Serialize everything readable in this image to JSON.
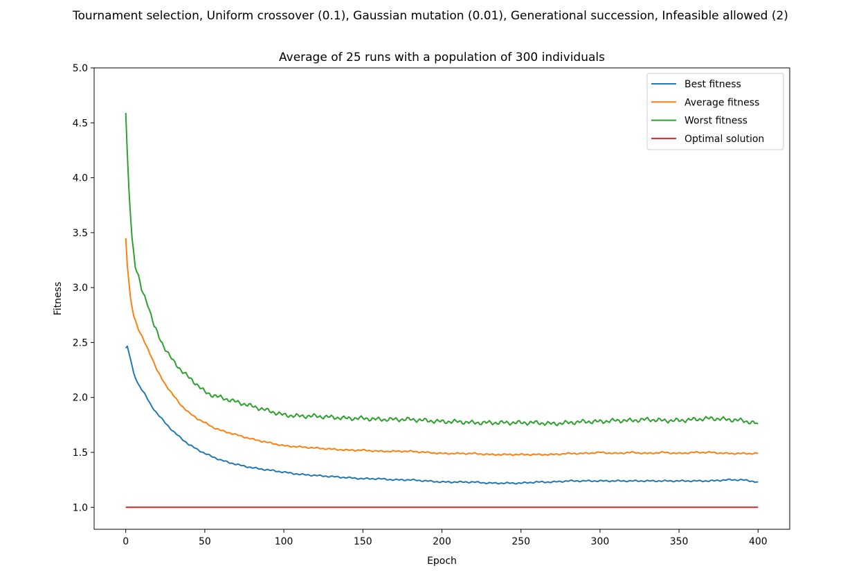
{
  "figure": {
    "suptitle": "Tournament selection, Uniform crossover (0.1), Gaussian mutation (0.01), Generational succession, Infeasible allowed (2)"
  },
  "chart_data": {
    "type": "line",
    "title": "Average of 25 runs with a population of 300 individuals",
    "xlabel": "Epoch",
    "ylabel": "Fitness",
    "xlim": [
      -20,
      420
    ],
    "ylim": [
      0.8,
      5.0
    ],
    "xticks": [
      0,
      50,
      100,
      150,
      200,
      250,
      300,
      350,
      400
    ],
    "yticks": [
      1.0,
      1.5,
      2.0,
      2.5,
      3.0,
      3.5,
      4.0,
      4.5,
      5.0
    ],
    "xtick_labels": [
      "0",
      "50",
      "100",
      "150",
      "200",
      "250",
      "300",
      "350",
      "400"
    ],
    "ytick_labels": [
      "1.0",
      "1.5",
      "2.0",
      "2.5",
      "3.0",
      "3.5",
      "4.0",
      "4.5",
      "5.0"
    ],
    "grid": false,
    "legend_position": "top-right",
    "series": [
      {
        "name": "Best fitness",
        "color": "#1f77b4",
        "x": [
          0,
          1,
          3,
          5,
          8,
          12,
          16,
          20,
          25,
          30,
          35,
          40,
          45,
          50,
          55,
          60,
          65,
          70,
          80,
          90,
          100,
          110,
          120,
          130,
          140,
          150,
          160,
          170,
          180,
          190,
          200,
          210,
          220,
          230,
          240,
          250,
          260,
          270,
          280,
          290,
          300,
          310,
          320,
          330,
          340,
          350,
          360,
          370,
          380,
          390,
          400
        ],
        "y": [
          2.45,
          2.46,
          2.35,
          2.22,
          2.12,
          2.03,
          1.93,
          1.85,
          1.77,
          1.69,
          1.63,
          1.57,
          1.53,
          1.49,
          1.46,
          1.43,
          1.41,
          1.39,
          1.36,
          1.34,
          1.32,
          1.3,
          1.29,
          1.28,
          1.27,
          1.26,
          1.26,
          1.25,
          1.25,
          1.24,
          1.23,
          1.23,
          1.23,
          1.22,
          1.22,
          1.22,
          1.23,
          1.23,
          1.24,
          1.24,
          1.24,
          1.24,
          1.24,
          1.24,
          1.24,
          1.24,
          1.24,
          1.24,
          1.25,
          1.25,
          1.23
        ]
      },
      {
        "name": "Average fitness",
        "color": "#ff7f0e",
        "x": [
          0,
          1,
          3,
          5,
          8,
          12,
          16,
          20,
          25,
          30,
          35,
          40,
          45,
          50,
          55,
          60,
          65,
          70,
          80,
          90,
          100,
          110,
          120,
          130,
          140,
          150,
          160,
          170,
          180,
          190,
          200,
          210,
          220,
          230,
          240,
          250,
          260,
          270,
          280,
          290,
          300,
          310,
          320,
          330,
          340,
          350,
          360,
          370,
          380,
          390,
          400
        ],
        "y": [
          3.45,
          3.2,
          2.9,
          2.75,
          2.62,
          2.5,
          2.38,
          2.24,
          2.12,
          2.02,
          1.93,
          1.86,
          1.81,
          1.77,
          1.73,
          1.7,
          1.68,
          1.66,
          1.62,
          1.59,
          1.56,
          1.55,
          1.54,
          1.53,
          1.52,
          1.52,
          1.51,
          1.51,
          1.51,
          1.5,
          1.49,
          1.49,
          1.49,
          1.48,
          1.48,
          1.48,
          1.48,
          1.48,
          1.49,
          1.49,
          1.5,
          1.49,
          1.5,
          1.49,
          1.5,
          1.49,
          1.5,
          1.5,
          1.49,
          1.49,
          1.49
        ]
      },
      {
        "name": "Worst fitness",
        "color": "#2ca02c",
        "x": [
          0,
          1,
          2,
          4,
          6,
          8,
          10,
          14,
          18,
          22,
          26,
          30,
          35,
          40,
          45,
          50,
          55,
          60,
          65,
          70,
          80,
          90,
          100,
          110,
          120,
          130,
          140,
          150,
          160,
          170,
          180,
          190,
          200,
          210,
          220,
          230,
          240,
          250,
          260,
          270,
          280,
          290,
          300,
          310,
          320,
          330,
          340,
          350,
          360,
          370,
          380,
          390,
          400
        ],
        "y": [
          4.59,
          4.2,
          3.9,
          3.45,
          3.2,
          3.1,
          2.98,
          2.85,
          2.65,
          2.52,
          2.42,
          2.33,
          2.25,
          2.18,
          2.12,
          2.05,
          2.02,
          2.0,
          1.98,
          1.96,
          1.92,
          1.88,
          1.84,
          1.83,
          1.83,
          1.82,
          1.81,
          1.81,
          1.8,
          1.8,
          1.8,
          1.79,
          1.78,
          1.78,
          1.77,
          1.77,
          1.77,
          1.77,
          1.77,
          1.76,
          1.77,
          1.78,
          1.78,
          1.79,
          1.79,
          1.8,
          1.79,
          1.79,
          1.8,
          1.81,
          1.8,
          1.79,
          1.76
        ]
      },
      {
        "name": "Optimal solution",
        "color": "#d62728",
        "x": [
          0,
          400
        ],
        "y": [
          1.0,
          1.0
        ]
      }
    ]
  }
}
